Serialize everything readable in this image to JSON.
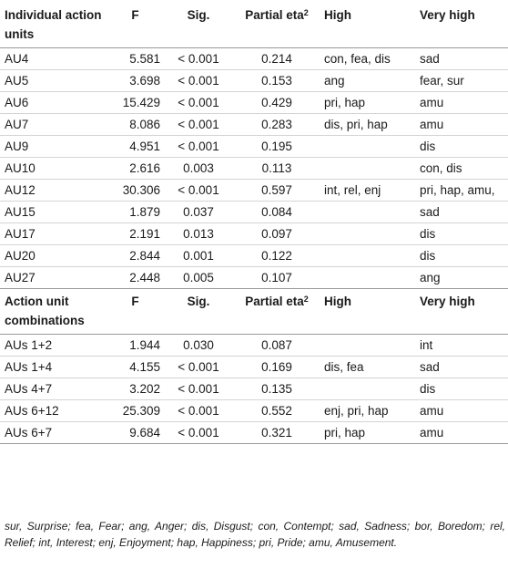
{
  "section1": {
    "header": {
      "col1": "Individual action units",
      "f": "F",
      "sig": "Sig.",
      "eta": "Partial eta",
      "eta_sup": "2",
      "high": "High",
      "very_high": "Very high"
    },
    "rows": [
      {
        "name": "AU4",
        "f": "5.581",
        "sig": "< 0.001",
        "eta": "0.214",
        "high": "con, fea, dis",
        "very_high": "sad"
      },
      {
        "name": "AU5",
        "f": "3.698",
        "sig": "< 0.001",
        "eta": "0.153",
        "high": "ang",
        "very_high": "fear, sur"
      },
      {
        "name": "AU6",
        "f": "15.429",
        "sig": "< 0.001",
        "eta": "0.429",
        "high": "pri, hap",
        "very_high": "amu"
      },
      {
        "name": "AU7",
        "f": "8.086",
        "sig": "< 0.001",
        "eta": "0.283",
        "high": "dis, pri, hap",
        "very_high": "amu"
      },
      {
        "name": "AU9",
        "f": "4.951",
        "sig": "< 0.001",
        "eta": "0.195",
        "high": "",
        "very_high": "dis"
      },
      {
        "name": "AU10",
        "f": "2.616",
        "sig": "0.003",
        "eta": "0.113",
        "high": "",
        "very_high": "con, dis"
      },
      {
        "name": "AU12",
        "f": "30.306",
        "sig": "< 0.001",
        "eta": "0.597",
        "high": "int, rel, enj",
        "very_high": "pri, hap, amu,"
      },
      {
        "name": "AU15",
        "f": "1.879",
        "sig": "0.037",
        "eta": "0.084",
        "high": "",
        "very_high": "sad"
      },
      {
        "name": "AU17",
        "f": "2.191",
        "sig": "0.013",
        "eta": "0.097",
        "high": "",
        "very_high": "dis"
      },
      {
        "name": "AU20",
        "f": "2.844",
        "sig": "0.001",
        "eta": "0.122",
        "high": "",
        "very_high": "dis"
      },
      {
        "name": "AU27",
        "f": "2.448",
        "sig": "0.005",
        "eta": "0.107",
        "high": "",
        "very_high": "ang"
      }
    ]
  },
  "section2": {
    "header": {
      "col1": "Action unit combinations",
      "f": "F",
      "sig": "Sig.",
      "eta": "Partial eta",
      "eta_sup": "2",
      "high": "High",
      "very_high": "Very high"
    },
    "rows": [
      {
        "name": "AUs 1+2",
        "f": "1.944",
        "sig": "0.030",
        "eta": "0.087",
        "high": "",
        "very_high": "int"
      },
      {
        "name": "AUs 1+4",
        "f": "4.155",
        "sig": "< 0.001",
        "eta": "0.169",
        "high": "dis, fea",
        "very_high": "sad"
      },
      {
        "name": "AUs 4+7",
        "f": "3.202",
        "sig": "< 0.001",
        "eta": "0.135",
        "high": "",
        "very_high": "dis"
      },
      {
        "name": "AUs 6+12",
        "f": "25.309",
        "sig": "< 0.001",
        "eta": "0.552",
        "high": "enj, pri, hap",
        "very_high": "amu"
      },
      {
        "name": "AUs 6+7",
        "f": "9.684",
        "sig": "< 0.001",
        "eta": "0.321",
        "high": "pri, hap",
        "very_high": "amu"
      }
    ]
  },
  "footnote": "sur, Surprise; fea, Fear; ang, Anger; dis, Disgust; con, Contempt; sad, Sadness; bor, Boredom; rel, Relief; int, Interest; enj, Enjoyment; hap, Happiness; pri, Pride; amu, Amusement."
}
